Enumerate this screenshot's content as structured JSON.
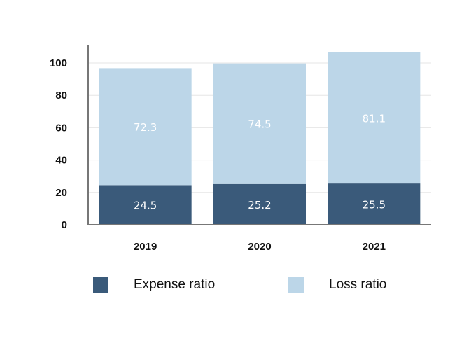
{
  "chart_data": {
    "type": "bar",
    "stacked": true,
    "categories": [
      "2019",
      "2020",
      "2021"
    ],
    "series": [
      {
        "name": "Expense ratio",
        "values": [
          24.5,
          25.2,
          25.5
        ],
        "color": "#3a5a7a"
      },
      {
        "name": "Loss ratio",
        "values": [
          72.3,
          74.5,
          81.1
        ],
        "color": "#bcd6e8"
      }
    ],
    "y_ticks": [
      "0",
      "20",
      "40",
      "60",
      "80",
      "100"
    ],
    "ylim": [
      0,
      110
    ],
    "grid": true,
    "legend_position": "bottom"
  }
}
